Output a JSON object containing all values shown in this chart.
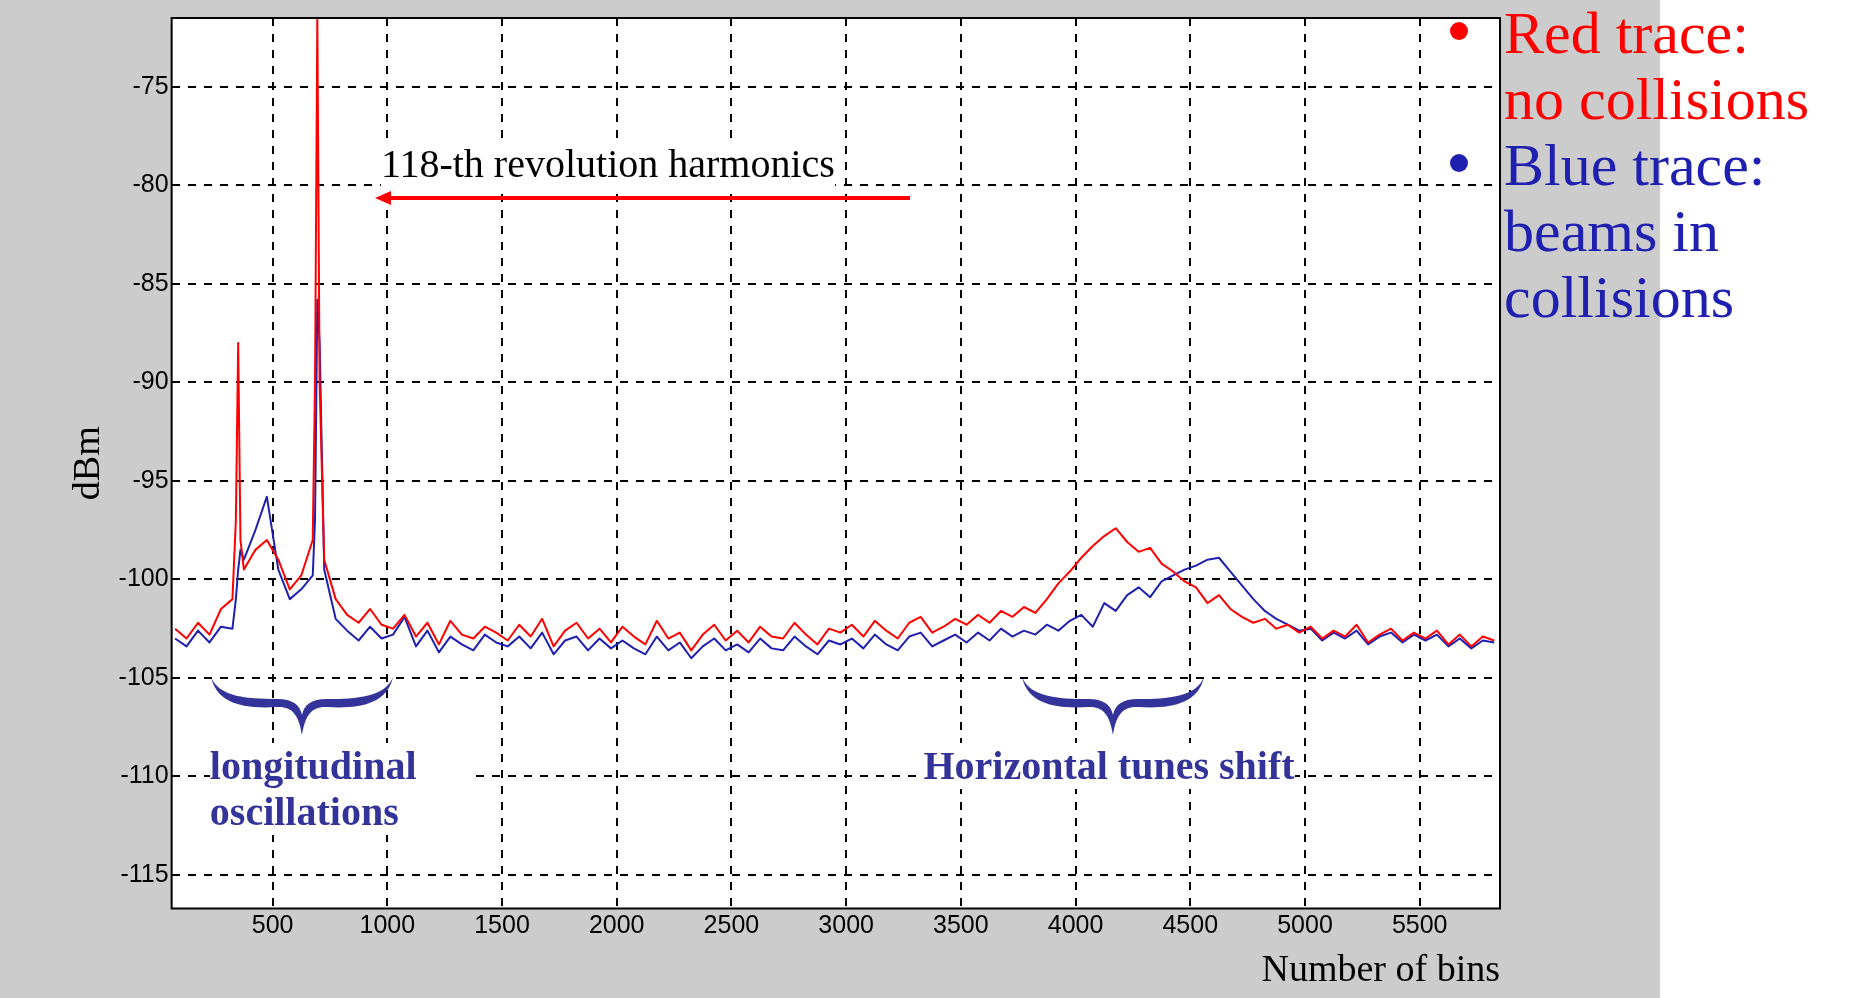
{
  "chart_data": {
    "type": "line",
    "xlabel": "Number of bins",
    "ylabel": "dBm",
    "xlim": [
      60,
      5850
    ],
    "ylim": [
      -116.7,
      -71.5
    ],
    "xticks": [
      500,
      1000,
      1500,
      2000,
      2500,
      3000,
      3500,
      4000,
      4500,
      5000,
      5500
    ],
    "yticks": [
      -115,
      -110,
      -105,
      -100,
      -95,
      -90,
      -85,
      -80,
      -75
    ],
    "grid": true,
    "legend": "right",
    "marker": "none",
    "line_style": "solid",
    "x": [
      75,
      125,
      175,
      225,
      275,
      325,
      340,
      350,
      360,
      375,
      425,
      475,
      525,
      575,
      625,
      675,
      685,
      695,
      705,
      725,
      775,
      825,
      875,
      925,
      975,
      1025,
      1075,
      1125,
      1175,
      1225,
      1275,
      1325,
      1375,
      1425,
      1475,
      1525,
      1575,
      1625,
      1675,
      1725,
      1775,
      1825,
      1875,
      1925,
      1975,
      2025,
      2075,
      2125,
      2175,
      2225,
      2275,
      2325,
      2375,
      2425,
      2475,
      2525,
      2575,
      2625,
      2675,
      2725,
      2775,
      2825,
      2875,
      2925,
      2975,
      3025,
      3075,
      3125,
      3175,
      3225,
      3275,
      3325,
      3375,
      3425,
      3475,
      3525,
      3575,
      3625,
      3675,
      3725,
      3775,
      3825,
      3875,
      3925,
      3975,
      4025,
      4075,
      4125,
      4175,
      4225,
      4275,
      4325,
      4375,
      4425,
      4475,
      4525,
      4575,
      4625,
      4675,
      4725,
      4775,
      4825,
      4875,
      4925,
      4975,
      5025,
      5075,
      5125,
      5175,
      5225,
      5275,
      5325,
      5375,
      5425,
      5475,
      5525,
      5575,
      5625,
      5675,
      5725,
      5775,
      5825
    ],
    "series": [
      {
        "name": "Red trace: no collisions",
        "color": "#ff0000",
        "values": [
          -102.5,
          -103,
          -102.2,
          -102.8,
          -101.5,
          -101,
          -97,
          -88,
          -98,
          -99.5,
          -98.5,
          -98,
          -99,
          -100.5,
          -99.8,
          -98,
          -90,
          -71.5,
          -90,
          -99,
          -101,
          -101.8,
          -102.2,
          -101.5,
          -102.3,
          -102.5,
          -101.8,
          -102.9,
          -102.2,
          -103.3,
          -102.1,
          -102.8,
          -103.0,
          -102.4,
          -102.7,
          -103.1,
          -102.3,
          -102.9,
          -102.0,
          -103.4,
          -102.6,
          -102.2,
          -103.0,
          -102.5,
          -103.2,
          -102.4,
          -102.9,
          -103.3,
          -102.1,
          -103.0,
          -102.7,
          -103.6,
          -102.8,
          -102.3,
          -103.1,
          -102.6,
          -103.2,
          -102.4,
          -102.9,
          -103.0,
          -102.2,
          -102.8,
          -103.3,
          -102.5,
          -102.7,
          -102.3,
          -102.9,
          -102.1,
          -102.6,
          -103.0,
          -102.2,
          -101.9,
          -102.7,
          -102.4,
          -102.0,
          -102.3,
          -101.8,
          -102.2,
          -101.6,
          -101.9,
          -101.4,
          -101.7,
          -101.0,
          -100.2,
          -99.6,
          -98.9,
          -98.3,
          -97.8,
          -97.4,
          -98.1,
          -98.6,
          -98.4,
          -99.2,
          -99.6,
          -100.1,
          -100.4,
          -101.2,
          -100.8,
          -101.5,
          -101.9,
          -102.2,
          -102.0,
          -102.5,
          -102.3,
          -102.7,
          -102.4,
          -103.0,
          -102.6,
          -102.9,
          -102.3,
          -103.2,
          -102.8,
          -102.5,
          -103.1,
          -102.7,
          -103.0,
          -102.6,
          -103.3,
          -102.8,
          -103.4,
          -102.9,
          -103.1
        ]
      },
      {
        "name": "Blue trace: beams in collisions",
        "color": "#2020b0",
        "values": [
          -103,
          -103.4,
          -102.6,
          -103.2,
          -102.4,
          -102.5,
          -101,
          -99.5,
          -98.5,
          -99,
          -97.5,
          -95.8,
          -99.5,
          -101,
          -100.5,
          -99.8,
          -97,
          -85.8,
          -88,
          -99.5,
          -102,
          -102.6,
          -103.1,
          -102.4,
          -103,
          -102.8,
          -101.9,
          -103.4,
          -102.6,
          -103.7,
          -102.9,
          -103.3,
          -103.6,
          -102.8,
          -103.2,
          -103.4,
          -102.9,
          -103.5,
          -102.7,
          -103.8,
          -103.1,
          -102.9,
          -103.6,
          -103.0,
          -103.5,
          -103.1,
          -103.5,
          -103.8,
          -102.9,
          -103.6,
          -103.2,
          -104.0,
          -103.4,
          -103.0,
          -103.6,
          -103.3,
          -103.7,
          -103.0,
          -103.5,
          -103.6,
          -102.9,
          -103.4,
          -103.8,
          -103.1,
          -103.3,
          -103.0,
          -103.5,
          -102.8,
          -103.3,
          -103.6,
          -102.9,
          -102.7,
          -103.4,
          -103.1,
          -102.8,
          -103.2,
          -102.7,
          -103.1,
          -102.5,
          -102.9,
          -102.6,
          -102.8,
          -102.3,
          -102.6,
          -102.1,
          -101.8,
          -102.4,
          -101.2,
          -101.6,
          -100.8,
          -100.4,
          -100.9,
          -100.1,
          -99.8,
          -99.5,
          -99.3,
          -99.0,
          -98.9,
          -99.6,
          -100.3,
          -101.0,
          -101.6,
          -102.0,
          -102.3,
          -102.6,
          -102.5,
          -103.1,
          -102.7,
          -103.0,
          -102.6,
          -103.3,
          -102.9,
          -102.7,
          -103.2,
          -102.8,
          -103.1,
          -102.8,
          -103.4,
          -103.0,
          -103.5,
          -103.1,
          -103.2
        ]
      }
    ],
    "annotations": [
      "118-th revolution harmonics",
      "longitudinal oscillations",
      "Horizontal tunes shift"
    ]
  }
}
